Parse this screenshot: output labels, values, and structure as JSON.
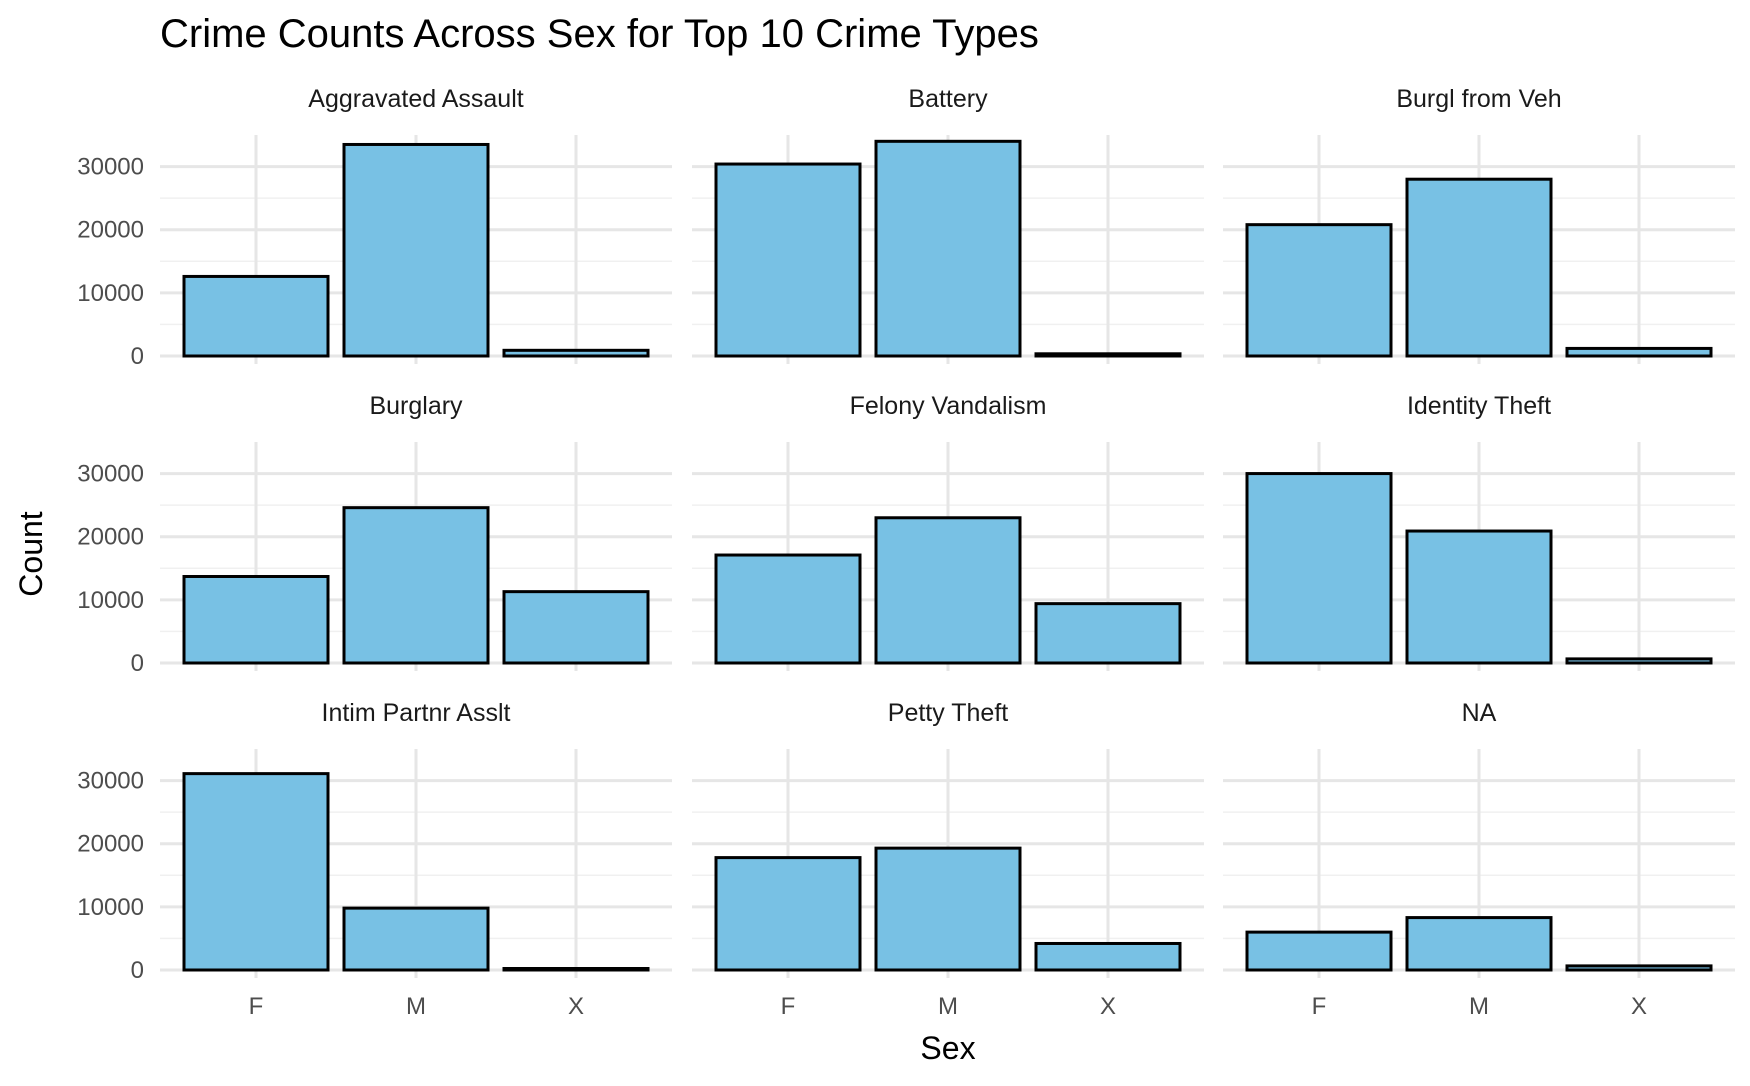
{
  "chart_data": {
    "type": "bar",
    "title": "Crime Counts Across Sex for Top 10 Crime Types",
    "xlabel": "Sex",
    "ylabel": "Count",
    "categories": [
      "F",
      "M",
      "X"
    ],
    "ylim": [
      0,
      35000
    ],
    "yticks": [
      0,
      10000,
      20000,
      30000
    ],
    "grid": true,
    "bar_fill": "#78c1e4",
    "bar_stroke": "#000000",
    "panels": [
      {
        "name": "Aggravated Assault",
        "values": [
          12600,
          33500,
          900
        ]
      },
      {
        "name": "Battery",
        "values": [
          30400,
          34000,
          350
        ]
      },
      {
        "name": "Burgl from Veh",
        "values": [
          20800,
          28000,
          1200
        ]
      },
      {
        "name": "Burglary",
        "values": [
          13700,
          24600,
          11300
        ]
      },
      {
        "name": "Felony Vandalism",
        "values": [
          17100,
          23000,
          9400
        ]
      },
      {
        "name": "Identity Theft",
        "values": [
          30000,
          20900,
          650
        ]
      },
      {
        "name": "Intim Partnr Asslt",
        "values": [
          31100,
          9800,
          150
        ]
      },
      {
        "name": "Petty Theft",
        "values": [
          17800,
          19300,
          4200
        ]
      },
      {
        "name": "NA",
        "values": [
          6000,
          8300,
          650
        ]
      }
    ]
  }
}
